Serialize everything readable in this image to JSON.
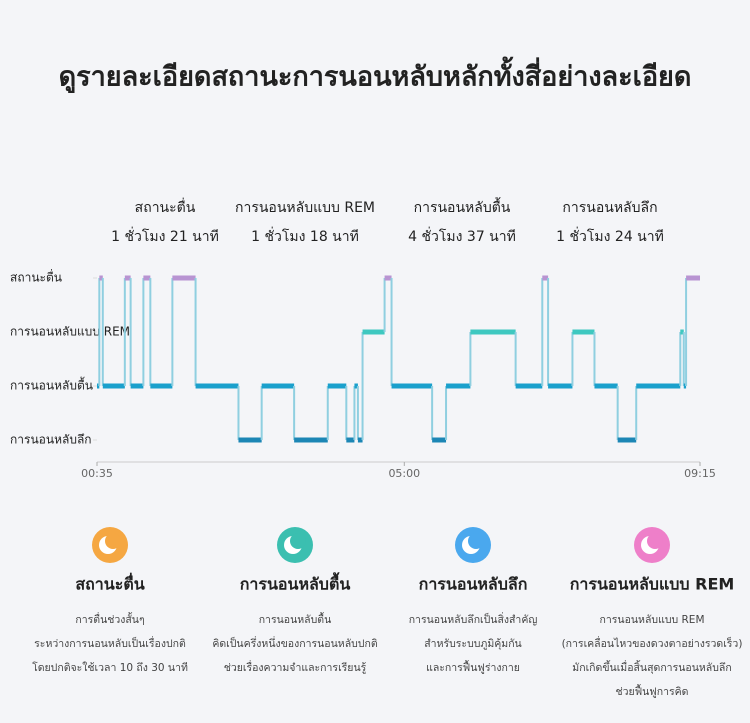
{
  "title": "ดูรายละเอียดสถานะการนอนหลับหลักทั้งสี่อย่างละเอียด",
  "summary": [
    {
      "label": "สถานะตื่น",
      "duration": "1 ชั่วโมง 21 นาที"
    },
    {
      "label": "การนอนหลับแบบ REM",
      "duration": "1 ชั่วโมง 18 นาที"
    },
    {
      "label": "การนอนหลับตื้น",
      "duration": "4 ชั่วโมง 37 นาที"
    },
    {
      "label": "การนอนหลับลึก",
      "duration": "1 ชั่วโมง 24 นาที"
    }
  ],
  "chart_data": {
    "type": "step",
    "x": [
      35,
      37,
      40,
      59,
      64,
      75,
      81,
      100,
      120,
      157,
      177,
      205,
      234,
      250,
      257,
      260,
      264,
      283,
      289,
      324,
      336,
      357,
      396,
      419,
      424,
      445,
      464,
      484,
      500,
      538,
      541,
      543
    ],
    "values": [
      1,
      3,
      1,
      3,
      1,
      3,
      1,
      3,
      1,
      0,
      1,
      0,
      1,
      0,
      1,
      0,
      2,
      3,
      1,
      0,
      1,
      2,
      1,
      3,
      1,
      2,
      1,
      0,
      1,
      2,
      1,
      3
    ],
    "xlim": [
      35,
      555
    ],
    "xticks": [
      {
        "value": 35,
        "label": "00:35"
      },
      {
        "value": 300,
        "label": "05:00"
      },
      {
        "value": 555,
        "label": "09:15"
      }
    ],
    "ylim": [
      0,
      3
    ],
    "yticks": [
      {
        "value": 0,
        "label": "การนอนหลับลึก"
      },
      {
        "value": 1,
        "label": "การนอนหลับตื้น"
      },
      {
        "value": 2,
        "label": "การนอนหลับแบบ REM"
      },
      {
        "value": 3,
        "label": "สถานะตื่น"
      }
    ],
    "colors": [
      "#1c86b5",
      "#1aa0cc",
      "#3ec8c0",
      "#b894d2"
    ]
  },
  "cards": [
    {
      "color": "#f5a742",
      "title": "สถานะตื่น",
      "lines": [
        "การตื่นช่วงสั้นๆ",
        "ระหว่างการนอนหลับเป็นเรื่องปกติ",
        "โดยปกติจะใช้เวลา 10 ถึง 30 นาที"
      ]
    },
    {
      "color": "#3bbfb0",
      "title": "การนอนหลับตื้น",
      "lines": [
        "การนอนหลับตื้น",
        "คิดเป็นครึ่งหนึ่งของการนอนหลับปกติ",
        "ช่วยเรื่องความจำและการเรียนรู้"
      ]
    },
    {
      "color": "#4aa8ee",
      "title": "การนอนหลับลึก",
      "lines": [
        "การนอนหลับลึกเป็นสิ่งสำคัญ",
        "สำหรับระบบภูมิคุ้มกัน",
        "และการฟื้นฟูร่างกาย"
      ]
    },
    {
      "color": "#ee7fc9",
      "title": "การนอนหลับแบบ REM",
      "lines": [
        "การนอนหลับแบบ REM",
        "(การเคลื่อนไหวของดวงตาอย่างรวดเร็ว)",
        "มักเกิดขึ้นเมื่อสิ้นสุดการนอนหลับลึก",
        "ช่วยฟื้นฟูการคิด"
      ]
    }
  ]
}
